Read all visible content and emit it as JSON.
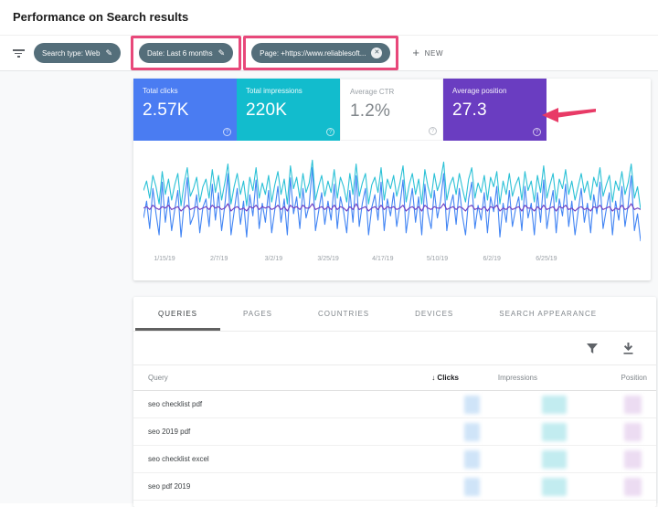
{
  "page": {
    "title": "Performance on Search results"
  },
  "colors": {
    "chip_bg": "#546e7a",
    "highlight_box": "#e8487a",
    "arrow": "#e83a66",
    "redacted_clicks": "#cfe4f8",
    "redacted_impressions": "#c2ecf0",
    "redacted_position": "#ecdcf2"
  },
  "filter_bar": {
    "chips": [
      {
        "label": "Search type: Web",
        "trailing_icon": "pencil-icon",
        "highlighted": false
      },
      {
        "label": "Date: Last 6 months",
        "trailing_icon": "pencil-icon",
        "highlighted": true
      },
      {
        "label": "Page: +https://www.reliablesoft...",
        "trailing_icon": "cancel-icon",
        "highlighted": true
      }
    ],
    "new_button_label": "NEW"
  },
  "metric_cards": [
    {
      "label": "Total clicks",
      "value": "2.57K",
      "bg": "#4a7cf2",
      "fg": "#ffffff"
    },
    {
      "label": "Total impressions",
      "value": "220K",
      "bg": "#12bccd",
      "fg": "#ffffff"
    },
    {
      "label": "Average CTR",
      "value": "1.2%",
      "bg": "#ffffff",
      "fg": "#80868b"
    },
    {
      "label": "Average position",
      "value": "27.3",
      "bg": "#6a3dc1",
      "fg": "#ffffff"
    }
  ],
  "chart_data": {
    "type": "line",
    "title": "Search performance over last 6 months (daily)",
    "x_tick_labels": [
      "1/15/19",
      "2/7/19",
      "3/2/19",
      "3/25/19",
      "4/17/19",
      "5/10/19",
      "6/2/19",
      "6/25/19"
    ],
    "grid": false,
    "legend_position": "none",
    "series": [
      {
        "name": "Total clicks",
        "color": "#4285f4",
        "axis_range": [
          0,
          45
        ],
        "values": [
          14,
          22,
          9,
          28,
          16,
          6,
          31,
          12,
          24,
          8,
          18,
          27,
          5,
          21,
          33,
          11,
          15,
          25,
          7,
          19,
          23,
          10,
          30,
          13,
          26,
          8,
          20,
          35,
          6,
          17,
          28,
          11,
          22,
          5,
          25,
          15,
          32,
          9,
          21,
          12,
          27,
          7,
          18,
          29,
          12,
          23,
          6,
          33,
          16,
          24,
          9,
          28,
          14,
          20,
          38,
          8,
          17,
          26,
          11,
          22,
          13,
          30,
          9,
          24,
          17,
          7,
          27,
          12,
          34,
          10,
          21,
          28,
          6,
          19,
          25,
          13,
          31,
          8,
          23,
          15,
          26,
          10,
          20,
          32,
          7,
          18,
          28,
          12,
          24,
          6,
          30,
          16,
          9,
          27,
          14,
          22,
          35,
          8,
          19,
          25,
          11,
          28,
          15,
          6,
          23,
          31,
          9,
          20,
          13,
          26,
          7,
          24,
          17,
          29,
          5,
          21,
          12,
          27,
          10,
          18,
          24,
          8,
          29,
          14,
          21,
          6,
          26,
          12,
          32,
          9,
          19,
          27,
          7,
          23,
          15,
          30,
          10,
          22,
          6,
          17,
          28,
          12,
          21,
          7,
          25,
          16,
          31,
          9,
          18,
          26,
          6,
          22,
          13,
          29,
          10,
          20,
          34,
          8,
          16,
          3
        ]
      },
      {
        "name": "Total impressions",
        "color": "#2bc1d6",
        "axis_range": [
          0,
          2500
        ],
        "values": [
          1500,
          1750,
          1300,
          1900,
          1600,
          1150,
          2000,
          1400,
          1800,
          1250,
          1650,
          1950,
          1100,
          1700,
          2100,
          1350,
          1550,
          1850,
          1200,
          1600,
          1800,
          1300,
          2050,
          1450,
          1900,
          1250,
          1700,
          2200,
          1150,
          1600,
          1950,
          1400,
          1750,
          1100,
          1850,
          1500,
          2100,
          1300,
          1700,
          1400,
          1900,
          1200,
          1650,
          2000,
          1400,
          1800,
          1150,
          2150,
          1550,
          1850,
          1300,
          1950,
          1450,
          1700,
          2300,
          1250,
          1600,
          1900,
          1350,
          1750,
          1450,
          2050,
          1300,
          1850,
          1600,
          1200,
          1950,
          1400,
          2200,
          1350,
          1700,
          1950,
          1150,
          1650,
          1850,
          1450,
          2100,
          1250,
          1800,
          1550,
          1900,
          1350,
          1700,
          2150,
          1200,
          1650,
          1950,
          1400,
          1800,
          1150,
          2050,
          1600,
          1300,
          1950,
          1500,
          1750,
          2250,
          1250,
          1650,
          1850,
          1400,
          1950,
          1550,
          1200,
          1800,
          2100,
          1300,
          1700,
          1450,
          1900,
          1250,
          1850,
          1600,
          2000,
          1150,
          1750,
          1400,
          1950,
          1350,
          1650,
          1850,
          1250,
          2000,
          1500,
          1750,
          1200,
          1900,
          1450,
          2150,
          1300,
          1650,
          1950,
          1200,
          1800,
          1550,
          2050,
          1400,
          1750,
          1250,
          1600,
          1950,
          1450,
          1750,
          1250,
          1850,
          1600,
          2100,
          1350,
          1650,
          1900,
          1200,
          1750,
          1500,
          2000,
          1400,
          1700,
          2200,
          1300,
          1600,
          1000
        ]
      },
      {
        "name": "Average position",
        "color": "#6e3bbf",
        "axis_range": [
          0,
          65
        ],
        "values": [
          27,
          28,
          26,
          29,
          27,
          26,
          28,
          27,
          29,
          26,
          27,
          28,
          25,
          27,
          29,
          26,
          27,
          28,
          26,
          27,
          28,
          26,
          29,
          27,
          28,
          26,
          27,
          30,
          25,
          27,
          28,
          26,
          27,
          25,
          28,
          27,
          29,
          26,
          28,
          27,
          28,
          26,
          27,
          29,
          26,
          28,
          25,
          29,
          27,
          28,
          26,
          29,
          27,
          27,
          30,
          26,
          27,
          28,
          26,
          28,
          26,
          29,
          26,
          28,
          27,
          25,
          28,
          26,
          30,
          26,
          27,
          28,
          25,
          27,
          28,
          26,
          29,
          26,
          28,
          27,
          28,
          26,
          27,
          29,
          25,
          27,
          28,
          26,
          28,
          25,
          29,
          27,
          26,
          28,
          27,
          27,
          30,
          26,
          27,
          28,
          26,
          28,
          27,
          25,
          28,
          29,
          26,
          27,
          26,
          28,
          25,
          28,
          27,
          29,
          25,
          27,
          26,
          28,
          26,
          27,
          28,
          25,
          29,
          27,
          27,
          25,
          28,
          26,
          29,
          26,
          27,
          28,
          25,
          28,
          27,
          29,
          26,
          27,
          25,
          27,
          28,
          26,
          27,
          25,
          28,
          27,
          29,
          26,
          27,
          28,
          25,
          27,
          26,
          29,
          26,
          27,
          30,
          26,
          27,
          26
        ]
      }
    ]
  },
  "table": {
    "tabs": [
      "QUERIES",
      "PAGES",
      "COUNTRIES",
      "DEVICES",
      "SEARCH APPEARANCE"
    ],
    "active_tab": "QUERIES",
    "columns": [
      "Query",
      "Clicks",
      "Impressions",
      "Position"
    ],
    "sorted_column": "Clicks",
    "values_redacted": true,
    "rows": [
      {
        "query": "seo checklist pdf"
      },
      {
        "query": "seo 2019 pdf"
      },
      {
        "query": "seo checklist excel"
      },
      {
        "query": "seo pdf 2019"
      }
    ]
  }
}
